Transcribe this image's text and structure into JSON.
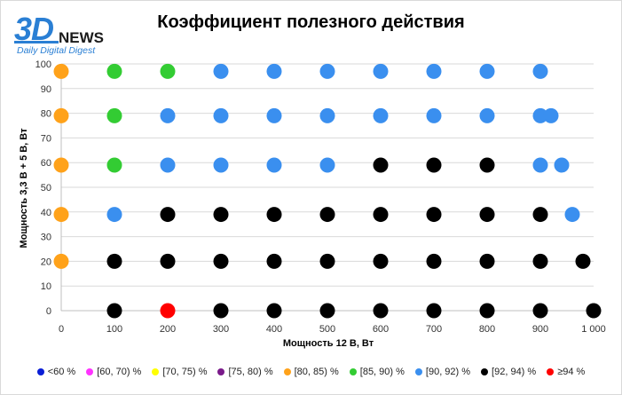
{
  "logo": {
    "big": "3D",
    "news": "NEWS",
    "digest": "Daily Digital Digest"
  },
  "chart_data": {
    "type": "scatter",
    "title": "Коэффициент полезного действия",
    "xlabel": "Мощность  12 В, Вт",
    "ylabel": "Мощность  3,3 В + 5 В, Вт",
    "xlim": [
      0,
      1000
    ],
    "ylim": [
      0,
      100
    ],
    "x_ticks": [
      "0",
      "100",
      "200",
      "300",
      "400",
      "500",
      "600",
      "700",
      "800",
      "900",
      "1 000"
    ],
    "y_ticks": [
      "0",
      "10",
      "20",
      "30",
      "40",
      "50",
      "60",
      "70",
      "80",
      "90",
      "100"
    ],
    "grid": "horizontal",
    "legend_position": "bottom",
    "series": [
      {
        "name": "<60 %",
        "color": "#0a1ed6",
        "points": []
      },
      {
        "name": "[60, 70) %",
        "color": "#ff33ff",
        "points": []
      },
      {
        "name": "[70, 75) %",
        "color": "#ffff00",
        "points": []
      },
      {
        "name": "[75, 80) %",
        "color": "#7a1a8a",
        "points": []
      },
      {
        "name": "[80, 85) %",
        "color": "#ffa21a",
        "points": [
          [
            0,
            97
          ],
          [
            0,
            79
          ],
          [
            0,
            59
          ],
          [
            0,
            39
          ],
          [
            0,
            20
          ]
        ]
      },
      {
        "name": "[85, 90) %",
        "color": "#33cc33",
        "points": [
          [
            100,
            97
          ],
          [
            200,
            97
          ],
          [
            100,
            79
          ],
          [
            100,
            59
          ]
        ]
      },
      {
        "name": "[90, 92) %",
        "color": "#3a8fef",
        "points": [
          [
            300,
            97
          ],
          [
            400,
            97
          ],
          [
            500,
            97
          ],
          [
            600,
            97
          ],
          [
            700,
            97
          ],
          [
            800,
            97
          ],
          [
            900,
            97
          ],
          [
            200,
            79
          ],
          [
            300,
            79
          ],
          [
            400,
            79
          ],
          [
            500,
            79
          ],
          [
            600,
            79
          ],
          [
            700,
            79
          ],
          [
            800,
            79
          ],
          [
            900,
            79
          ],
          [
            920,
            79
          ],
          [
            200,
            59
          ],
          [
            300,
            59
          ],
          [
            400,
            59
          ],
          [
            500,
            59
          ],
          [
            900,
            59
          ],
          [
            940,
            59
          ],
          [
            100,
            39
          ],
          [
            960,
            39
          ]
        ]
      },
      {
        "name": "[92, 94) %",
        "color": "#000000",
        "points": [
          [
            600,
            59
          ],
          [
            700,
            59
          ],
          [
            800,
            59
          ],
          [
            200,
            39
          ],
          [
            300,
            39
          ],
          [
            400,
            39
          ],
          [
            500,
            39
          ],
          [
            600,
            39
          ],
          [
            700,
            39
          ],
          [
            800,
            39
          ],
          [
            900,
            39
          ],
          [
            100,
            20
          ],
          [
            200,
            20
          ],
          [
            300,
            20
          ],
          [
            400,
            20
          ],
          [
            500,
            20
          ],
          [
            600,
            20
          ],
          [
            700,
            20
          ],
          [
            800,
            20
          ],
          [
            900,
            20
          ],
          [
            980,
            20
          ],
          [
            100,
            0
          ],
          [
            300,
            0
          ],
          [
            400,
            0
          ],
          [
            500,
            0
          ],
          [
            600,
            0
          ],
          [
            700,
            0
          ],
          [
            800,
            0
          ],
          [
            900,
            0
          ],
          [
            1000,
            0
          ]
        ]
      },
      {
        "name": "≥94 %",
        "color": "#ff0000",
        "points": [
          [
            200,
            0
          ]
        ]
      }
    ]
  }
}
